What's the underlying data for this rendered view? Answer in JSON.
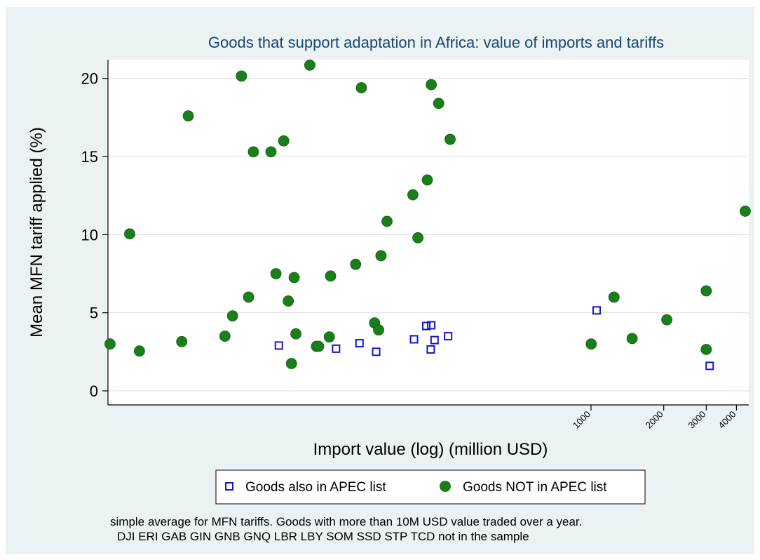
{
  "chart_data": {
    "type": "scatter",
    "title": "Goods that support adaptation in Africa: value of imports and tariffs",
    "xlabel": "Import value (log) (million USD)",
    "ylabel": "Mean MFN tariff applied (%)",
    "x_scale": "log",
    "xlim": [
      10,
      4500
    ],
    "ylim": [
      -0.9,
      21.2
    ],
    "x_ticks": [
      1000,
      2000,
      3000,
      4000
    ],
    "x_tick_labels": [
      "1000",
      "2000",
      "3000",
      "4000"
    ],
    "y_ticks": [
      0,
      5,
      10,
      15,
      20
    ],
    "y_tick_labels": [
      "0",
      "5",
      "10",
      "15",
      "20"
    ],
    "grid": "horizontal",
    "legend_position": "bottom",
    "series": [
      {
        "name": "Goods also in APEC list",
        "marker": "hollow-square",
        "color": "#1515d0",
        "points": [
          {
            "x": 51,
            "y": 2.9
          },
          {
            "x": 88,
            "y": 2.7
          },
          {
            "x": 110,
            "y": 3.05
          },
          {
            "x": 129,
            "y": 2.5
          },
          {
            "x": 185,
            "y": 3.3
          },
          {
            "x": 208,
            "y": 4.15
          },
          {
            "x": 218,
            "y": 4.2
          },
          {
            "x": 217,
            "y": 2.65
          },
          {
            "x": 225,
            "y": 3.25
          },
          {
            "x": 256,
            "y": 3.5
          },
          {
            "x": 1055,
            "y": 5.15
          },
          {
            "x": 3100,
            "y": 1.6
          }
        ]
      },
      {
        "name": "Goods NOT in APEC list",
        "marker": "filled-circle",
        "color": "#1a7f1a",
        "points": [
          {
            "x": 10.2,
            "y": 3.0
          },
          {
            "x": 12.3,
            "y": 10.05
          },
          {
            "x": 13.5,
            "y": 2.55
          },
          {
            "x": 20.2,
            "y": 3.15
          },
          {
            "x": 21.5,
            "y": 17.6
          },
          {
            "x": 30.5,
            "y": 3.5
          },
          {
            "x": 32.8,
            "y": 4.8
          },
          {
            "x": 35.7,
            "y": 20.15
          },
          {
            "x": 38.2,
            "y": 6.0
          },
          {
            "x": 40,
            "y": 15.3
          },
          {
            "x": 47.3,
            "y": 15.3
          },
          {
            "x": 49.6,
            "y": 7.5
          },
          {
            "x": 53.4,
            "y": 16.0
          },
          {
            "x": 55.8,
            "y": 5.75
          },
          {
            "x": 57.5,
            "y": 1.75
          },
          {
            "x": 59,
            "y": 7.25
          },
          {
            "x": 60,
            "y": 3.65
          },
          {
            "x": 68.5,
            "y": 20.85
          },
          {
            "x": 73,
            "y": 2.85
          },
          {
            "x": 74.5,
            "y": 2.85
          },
          {
            "x": 82.5,
            "y": 3.45
          },
          {
            "x": 83.5,
            "y": 7.35
          },
          {
            "x": 106,
            "y": 8.1
          },
          {
            "x": 112,
            "y": 19.4
          },
          {
            "x": 127,
            "y": 4.35
          },
          {
            "x": 132,
            "y": 3.9
          },
          {
            "x": 135,
            "y": 8.65
          },
          {
            "x": 143,
            "y": 10.85
          },
          {
            "x": 183,
            "y": 12.55
          },
          {
            "x": 192,
            "y": 9.8
          },
          {
            "x": 210,
            "y": 13.5
          },
          {
            "x": 218,
            "y": 19.6
          },
          {
            "x": 234,
            "y": 18.4
          },
          {
            "x": 261,
            "y": 16.1
          },
          {
            "x": 1002,
            "y": 3.0
          },
          {
            "x": 1245,
            "y": 6.0
          },
          {
            "x": 1480,
            "y": 3.35
          },
          {
            "x": 2060,
            "y": 4.55
          },
          {
            "x": 3000,
            "y": 6.4
          },
          {
            "x": 3000,
            "y": 2.65
          },
          {
            "x": 4350,
            "y": 11.5
          }
        ]
      }
    ],
    "notes": [
      "simple average for MFN tariffs. Goods with more than 10M USD value traded over a year.",
      "DJI ERI GAB GIN GNB GNQ LBR LBY SOM SSD STP TCD not in the sample"
    ]
  }
}
